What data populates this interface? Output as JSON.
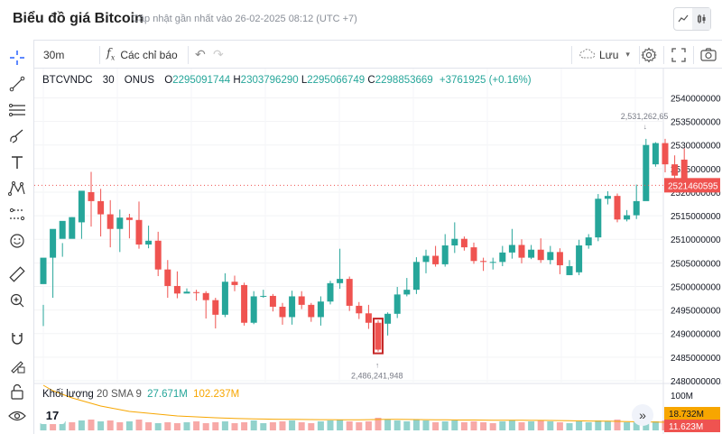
{
  "header": {
    "title": "Biểu đồ giá Bitcoin",
    "updated": "Cập nhật gần nhất vào 26-02-2025 08:12 (UTC +7)",
    "chart_type_icons": [
      "line-chart-icon",
      "candlestick-icon"
    ]
  },
  "toolbar": {
    "interval": "30m",
    "indicators_label": "Các chỉ báo",
    "save_label": "Lưu"
  },
  "legend": {
    "symbol": "BTCVNDC",
    "interval": "30",
    "exchange": "ONUS",
    "o_label": "O",
    "o_value": "2295091744",
    "h_label": "H",
    "h_value": "2303796290",
    "l_label": "L",
    "l_value": "2295066749",
    "c_label": "C",
    "c_value": "2298853669",
    "change": "+3761925 (+0.16%)"
  },
  "volume_legend": {
    "name": "Khối lượng",
    "params": "20 SMA 9",
    "v1": "27.671M",
    "v2": "102.237M"
  },
  "colors": {
    "up": "#26a69a",
    "down": "#ef5350",
    "sma": "#f7a600",
    "last_price_bg": "#ef5350",
    "vol_badge_1": "#f7a600",
    "vol_badge_2": "#ef5350"
  },
  "chart_data": {
    "type": "candlestick",
    "ylim": [
      2480000000,
      2542000000
    ],
    "y_ticks": [
      "2540000000",
      "2535000000",
      "2530000000",
      "2525000000",
      "2520000000",
      "2515000000",
      "2510000000",
      "2505000000",
      "2500000000",
      "2495000000",
      "2490000000",
      "2485000000",
      "2480000000"
    ],
    "last_price": "2521460595",
    "high_marker": "2,531,262,65",
    "low_marker": "2,486,241,948",
    "volume_ticks": [
      "100M"
    ],
    "volume_badges": [
      "18.732M",
      "11.623M"
    ],
    "candles": [
      [
        2500.5,
        2506.1,
        2496.1,
        2491.6
      ],
      [
        2506.1,
        2512.2,
        2510.1,
        2497.6
      ],
      [
        2510.1,
        2513.9,
        2509.2,
        2506.3
      ],
      [
        2510.1,
        2514.7,
        2514.7,
        2510.5
      ],
      [
        2513.6,
        2520.3,
        2520.0,
        2510.1
      ],
      [
        2520.0,
        2518.1,
        2524.3,
        2512.7
      ],
      [
        2518.1,
        2515.3,
        2520.7,
        2510.6
      ],
      [
        2515.3,
        2512.2,
        2518.3,
        2508.3
      ],
      [
        2512.2,
        2514.6,
        2516.3,
        2507.3
      ],
      [
        2514.6,
        2514.1,
        2515.4,
        2510.2
      ],
      [
        2514.1,
        2508.9,
        2518.0,
        2508.0
      ],
      [
        2508.9,
        2509.7,
        2512.9,
        2508.1
      ],
      [
        2509.7,
        2503.6,
        2511.6,
        2502.2
      ],
      [
        2503.6,
        2500.1,
        2505.6,
        2497.6
      ],
      [
        2500.1,
        2498.5,
        2503.2,
        2497.5
      ],
      [
        2498.5,
        2498.9,
        2499.6,
        2498.6
      ],
      [
        2498.8,
        2498.6,
        2499.3,
        2497.0
      ],
      [
        2498.6,
        2497.1,
        2499.0,
        2493.2
      ],
      [
        2497.1,
        2494.0,
        2497.6,
        2491.1
      ],
      [
        2494.0,
        2501.0,
        2502.8,
        2493.5
      ],
      [
        2501.0,
        2500.3,
        2502.3,
        2499.0
      ],
      [
        2500.3,
        2492.3,
        2500.8,
        2491.7
      ],
      [
        2492.3,
        2497.9,
        2499.0,
        2492.0
      ],
      [
        2497.9,
        2498.0,
        2499.3,
        2497.6
      ],
      [
        2498.0,
        2495.7,
        2498.4,
        2494.7
      ],
      [
        2495.7,
        2493.5,
        2496.5,
        2491.9
      ],
      [
        2493.5,
        2497.9,
        2499.1,
        2491.9
      ],
      [
        2497.9,
        2496.1,
        2499.0,
        2495.2
      ],
      [
        2496.1,
        2493.5,
        2496.5,
        2492.5
      ],
      [
        2493.5,
        2496.8,
        2497.9,
        2491.7
      ],
      [
        2496.8,
        2500.7,
        2501.2,
        2496.2
      ],
      [
        2500.7,
        2501.6,
        2508.0,
        2499.5
      ],
      [
        2501.6,
        2495.9,
        2502.1,
        2494.8
      ],
      [
        2495.9,
        2494.3,
        2496.7,
        2493.1
      ],
      [
        2494.3,
        2492.3,
        2496.1,
        2491.0
      ],
      [
        2492.3,
        2486.6,
        2492.8,
        2486.2
      ],
      [
        2492.1,
        2494.2,
        2494.5,
        2489.6
      ],
      [
        2494.2,
        2498.3,
        2499.9,
        2493.3
      ],
      [
        2498.3,
        2499.3,
        2501.8,
        2497.9
      ],
      [
        2499.3,
        2505.2,
        2506.2,
        2498.4
      ],
      [
        2505.2,
        2506.5,
        2507.8,
        2502.8
      ],
      [
        2506.5,
        2504.7,
        2508.6,
        2504.2
      ],
      [
        2504.7,
        2508.7,
        2511.1,
        2504.2
      ],
      [
        2508.7,
        2510.1,
        2513.6,
        2507.1
      ],
      [
        2510.1,
        2508.3,
        2510.6,
        2507.6
      ],
      [
        2508.3,
        2505.4,
        2509.3,
        2504.8
      ],
      [
        2505.4,
        2505.2,
        2506.1,
        2503.3
      ],
      [
        2505.2,
        2505.2,
        2506.1,
        2503.6
      ],
      [
        2505.2,
        2507.2,
        2508.6,
        2504.3
      ],
      [
        2507.2,
        2508.8,
        2512.2,
        2505.9
      ],
      [
        2508.8,
        2506.1,
        2510.0,
        2504.9
      ],
      [
        2506.1,
        2507.8,
        2508.8,
        2505.8
      ],
      [
        2507.8,
        2505.6,
        2510.2,
        2505.0
      ],
      [
        2505.6,
        2507.3,
        2508.6,
        2504.7
      ],
      [
        2507.3,
        2504.5,
        2508.1,
        2502.6
      ],
      [
        2502.4,
        2504.3,
        2505.6,
        2502.4
      ],
      [
        2503.0,
        2508.7,
        2509.9,
        2502.4
      ],
      [
        2508.7,
        2510.4,
        2511.1,
        2508.0
      ],
      [
        2510.4,
        2518.6,
        2519.6,
        2509.6
      ],
      [
        2518.6,
        2519.2,
        2520.2,
        2517.4
      ],
      [
        2519.2,
        2514.2,
        2519.7,
        2513.6
      ],
      [
        2514.2,
        2515.1,
        2516.2,
        2513.8
      ],
      [
        2515.1,
        2518.1,
        2521.6,
        2514.3
      ],
      [
        2518.1,
        2530.0,
        2531.3,
        2519.3
      ],
      [
        2525.9,
        2530.4,
        2530.6,
        2525.4
      ],
      [
        2530.4,
        2525.9,
        2531.3,
        2524.2
      ],
      [
        2525.9,
        2523.5,
        2527.8,
        2522.0
      ],
      [
        2526.9,
        2521.5,
        2529.3,
        2520.0
      ]
    ],
    "volumes": [
      [
        8,
        0
      ],
      [
        9,
        1
      ],
      [
        10,
        0
      ],
      [
        9,
        1
      ],
      [
        11,
        0
      ],
      [
        12,
        1
      ],
      [
        10,
        0
      ],
      [
        11,
        1
      ],
      [
        9,
        1
      ],
      [
        10,
        0
      ],
      [
        12,
        1
      ],
      [
        9,
        1
      ],
      [
        8,
        0
      ],
      [
        9,
        1
      ],
      [
        8,
        1
      ],
      [
        9,
        0
      ],
      [
        10,
        1
      ],
      [
        8,
        1
      ],
      [
        9,
        1
      ],
      [
        10,
        0
      ],
      [
        8,
        1
      ],
      [
        9,
        1
      ],
      [
        11,
        0
      ],
      [
        8,
        0
      ],
      [
        9,
        1
      ],
      [
        10,
        1
      ],
      [
        11,
        0
      ],
      [
        9,
        1
      ],
      [
        8,
        1
      ],
      [
        10,
        0
      ],
      [
        11,
        0
      ],
      [
        12,
        0
      ],
      [
        10,
        1
      ],
      [
        9,
        1
      ],
      [
        10,
        1
      ],
      [
        14,
        1
      ],
      [
        12,
        0
      ],
      [
        11,
        0
      ],
      [
        10,
        0
      ],
      [
        12,
        0
      ],
      [
        11,
        0
      ],
      [
        9,
        1
      ],
      [
        10,
        0
      ],
      [
        11,
        0
      ],
      [
        9,
        1
      ],
      [
        10,
        1
      ],
      [
        9,
        1
      ],
      [
        8,
        1
      ],
      [
        10,
        0
      ],
      [
        11,
        0
      ],
      [
        9,
        1
      ],
      [
        10,
        0
      ],
      [
        11,
        1
      ],
      [
        10,
        0
      ],
      [
        9,
        1
      ],
      [
        8,
        0
      ],
      [
        10,
        0
      ],
      [
        9,
        0
      ],
      [
        11,
        0
      ],
      [
        10,
        0
      ],
      [
        12,
        1
      ],
      [
        9,
        0
      ],
      [
        10,
        0
      ],
      [
        11,
        0
      ],
      [
        10,
        0
      ],
      [
        11,
        1
      ],
      [
        9,
        1
      ],
      [
        8,
        1
      ]
    ],
    "sma": [
      50,
      44,
      40,
      36,
      33,
      30,
      27,
      25,
      23,
      21,
      20,
      19,
      18,
      17,
      16,
      15.5,
      15,
      14.5,
      14,
      13.6,
      13.3,
      13,
      12.8,
      12.6,
      12.4,
      12.3,
      12.2,
      12.1,
      12.0,
      11.9,
      11.9,
      11.8,
      11.8,
      11.8,
      11.9,
      12.1,
      12.2,
      12.2,
      12.1,
      12.0,
      11.9,
      11.8,
      11.7,
      11.6,
      11.5,
      11.5,
      11.4,
      11.3,
      11.3,
      11.2,
      11.2,
      11.1,
      11.1,
      11.0,
      10.9,
      10.7,
      10.6,
      10.4,
      10.3,
      10.2,
      10.0,
      9.8,
      9.6,
      9.4,
      9.2,
      9.0,
      8.8,
      8.6
    ]
  }
}
